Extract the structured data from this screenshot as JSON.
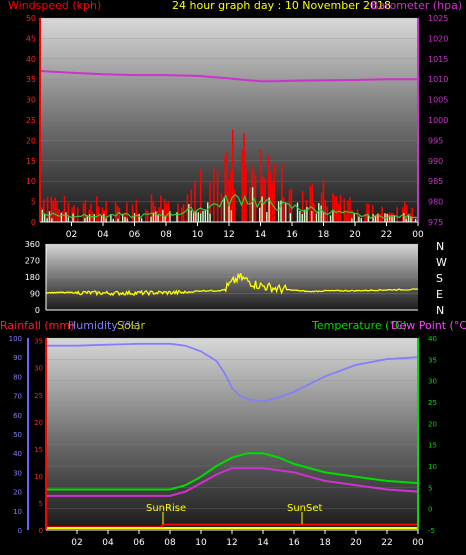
{
  "colors": {
    "wind": "#ff2020",
    "gust": "#ff0000",
    "windavg": "#c8ffc8",
    "barometer": "#cc33cc",
    "direction": "#ffff00",
    "rain": "#ff0000",
    "humidity": "#8080ff",
    "solar": "#ffff00",
    "temperature": "#00dd00",
    "dewpoint": "#cc33cc",
    "axis": "#ffffff"
  },
  "header": {
    "wind_label": "Windspeed (kph)",
    "title": "24 hour graph day : 10 November 2018",
    "baro_label": "Barometer (hpa)"
  },
  "legend": {
    "rain": "Rainfall (mm)",
    "humidity": "Humidity (%)",
    "solar": "Solar",
    "temperature": "Temperature (°C)",
    "dewpoint": "Dew Point (°C)"
  },
  "compass": [
    "N",
    "W",
    "S",
    "E",
    "N"
  ],
  "events": {
    "sunrise": "SunRise",
    "sunset": "SunSet"
  },
  "chart_data": [
    {
      "type": "line",
      "name": "wind_baro",
      "x_ticks": [
        "02",
        "04",
        "06",
        "08",
        "10",
        "12",
        "14",
        "16",
        "18",
        "20",
        "22",
        "00"
      ],
      "y_left_ticks": [
        0,
        5,
        10,
        15,
        20,
        25,
        30,
        35,
        40,
        45,
        50
      ],
      "y_left_range": [
        0,
        50
      ],
      "y_right_ticks": [
        975,
        980,
        985,
        990,
        995,
        1000,
        1005,
        1010,
        1015,
        1020,
        1025
      ],
      "y_right_range": [
        975,
        1025
      ],
      "series": [
        {
          "name": "Windspeed (kph)",
          "x_hours": [
            0,
            1,
            2,
            3,
            4,
            5,
            6,
            7,
            8,
            9,
            10,
            11,
            12,
            13,
            14,
            15,
            16,
            17,
            18,
            19,
            20,
            21,
            22,
            23,
            24
          ],
          "values": [
            5,
            4,
            3,
            4,
            3,
            4,
            3,
            4,
            4,
            5,
            7,
            9,
            12,
            13,
            10,
            9,
            8,
            7,
            6,
            5,
            4,
            3,
            3,
            3,
            3
          ]
        },
        {
          "name": "Barometer (hpa)",
          "x_hours": [
            0,
            2,
            4,
            6,
            8,
            10,
            12,
            13,
            14,
            15,
            16,
            18,
            20,
            22,
            24
          ],
          "values": [
            1012,
            1011.6,
            1011.2,
            1011,
            1011,
            1010.8,
            1010.2,
            1009.8,
            1009.5,
            1009.5,
            1009.6,
            1009.7,
            1009.8,
            1010,
            1010
          ]
        }
      ]
    },
    {
      "type": "line",
      "name": "wind_direction",
      "x_ticks": [
        "02",
        "04",
        "06",
        "08",
        "10",
        "12",
        "14",
        "16",
        "18",
        "20",
        "22",
        "00"
      ],
      "y_ticks": [
        0,
        90,
        180,
        270,
        360
      ],
      "y_range": [
        0,
        360
      ],
      "series": [
        {
          "name": "direction",
          "x_hours": [
            0,
            2,
            4,
            6,
            8,
            9,
            10,
            11,
            11.5,
            12,
            12.5,
            13,
            13.5,
            14,
            15,
            16,
            17,
            18,
            20,
            22,
            24
          ],
          "values": [
            95,
            95,
            92,
            93,
            95,
            95,
            105,
            105,
            110,
            150,
            180,
            160,
            140,
            130,
            115,
            108,
            100,
            105,
            105,
            110,
            112
          ]
        }
      ]
    },
    {
      "type": "line",
      "name": "humidity_temp",
      "x_ticks": [
        "02",
        "04",
        "06",
        "08",
        "10",
        "12",
        "14",
        "16",
        "18",
        "20",
        "22",
        "00"
      ],
      "y_left_ticks": [
        0,
        10,
        20,
        30,
        40,
        50,
        60,
        70,
        80,
        90,
        100
      ],
      "y_left_range": [
        0,
        100
      ],
      "y_mid_ticks": [
        0,
        5,
        10,
        15,
        20,
        25,
        30,
        35
      ],
      "y_right_ticks": [
        -5,
        0,
        5,
        10,
        15,
        20,
        25,
        30,
        35,
        40
      ],
      "y_right_range": [
        -5,
        40
      ],
      "series": [
        {
          "name": "Humidity (%)",
          "x_hours": [
            0,
            2,
            4,
            6,
            8,
            9,
            10,
            11,
            11.5,
            12,
            12.5,
            13,
            14,
            15,
            16,
            17,
            18,
            20,
            22,
            24
          ],
          "values": [
            96,
            96,
            96.5,
            97,
            97,
            96,
            93,
            88,
            82,
            74,
            70,
            68,
            67,
            69,
            72,
            76,
            80,
            86,
            89,
            90
          ]
        },
        {
          "name": "Temperature (°C)",
          "x_hours": [
            0,
            2,
            4,
            6,
            8,
            9,
            10,
            11,
            12,
            13,
            14,
            15,
            16,
            17,
            18,
            20,
            22,
            24
          ],
          "values": [
            4.5,
            4.5,
            4.5,
            4.5,
            4.5,
            5.5,
            7.5,
            10,
            12,
            13,
            13,
            12,
            10.5,
            9.5,
            8.5,
            7.5,
            6.5,
            6
          ]
        },
        {
          "name": "Dew Point (°C)",
          "x_hours": [
            0,
            2,
            4,
            6,
            8,
            9,
            10,
            11,
            12,
            13,
            14,
            15,
            16,
            17,
            18,
            20,
            22,
            24
          ],
          "values": [
            3,
            3,
            3,
            3,
            3,
            4,
            6,
            8,
            9.5,
            9.5,
            9.5,
            9,
            8.5,
            7.5,
            6.5,
            5.5,
            4.5,
            4
          ]
        },
        {
          "name": "Rainfall (mm)",
          "x_hours": [
            0,
            7.5,
            7.5,
            24
          ],
          "values": [
            0.5,
            0.5,
            1,
            1
          ]
        }
      ]
    }
  ]
}
